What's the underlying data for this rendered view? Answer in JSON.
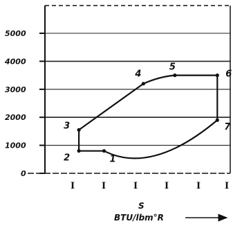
{
  "chart_data": {
    "type": "line",
    "title": "",
    "xlabel": "S",
    "xunit": "BTU/lbm°R",
    "ylabel": "",
    "ylim": [
      0,
      5000
    ],
    "yticks": [
      0,
      1000,
      2000,
      3000,
      4000,
      5000
    ],
    "ytick_labels": [
      "0",
      "1000",
      "2000",
      "3000",
      "4000",
      "5000"
    ],
    "xtick_labels": [
      "I",
      "I",
      "I",
      "I",
      "I",
      "I"
    ],
    "grid": "horizontal",
    "series": [
      {
        "points": [
          {
            "label": "1",
            "x": 1.0,
            "y": 800
          },
          {
            "label": "2",
            "x": 0.2,
            "y": 800
          },
          {
            "label": "3",
            "x": 0.2,
            "y": 1550
          },
          {
            "label": "4",
            "x": 2.25,
            "y": 3200
          },
          {
            "label": "5",
            "x": 3.25,
            "y": 3500
          },
          {
            "label": "6",
            "x": 4.6,
            "y": 3500
          },
          {
            "label": "7",
            "x": 4.6,
            "y": 1900
          },
          {
            "label": "1",
            "x": 1.0,
            "y": 800
          }
        ]
      }
    ]
  }
}
